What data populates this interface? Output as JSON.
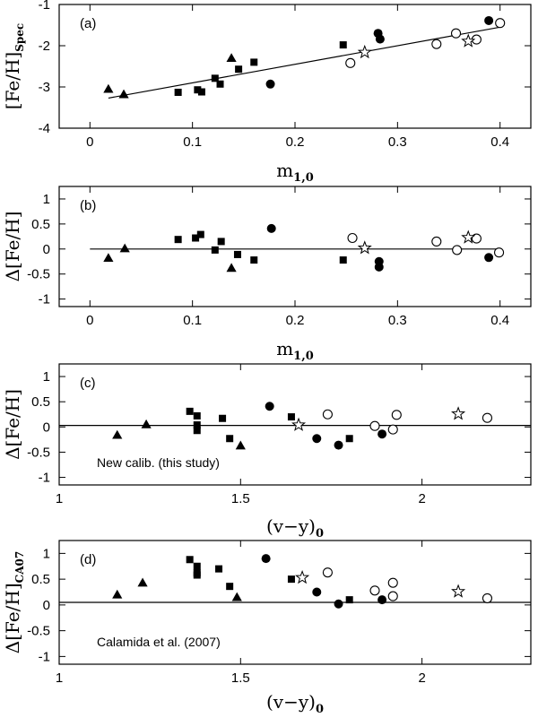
{
  "chart_data": [
    {
      "panel": "(a)",
      "type": "scatter",
      "xlim": [
        -0.03,
        0.43
      ],
      "ylim": [
        -4,
        -1
      ],
      "xticks": [
        0,
        0.1,
        0.2,
        0.3,
        0.4
      ],
      "yticks": [
        -4,
        -3,
        -2,
        -1
      ],
      "xlabel_main": "m",
      "xlabel_sub": "1,0",
      "ylabel_main": "[Fe/H]",
      "ylabel_sub": "Spec",
      "fit_line": [
        [
          0.018,
          -3.27
        ],
        [
          0.4,
          -1.55
        ]
      ],
      "series": [
        {
          "marker": "triangle",
          "points": [
            [
              0.018,
              -3.05
            ],
            [
              0.033,
              -3.18
            ],
            [
              0.138,
              -2.3
            ]
          ]
        },
        {
          "marker": "square",
          "points": [
            [
              0.086,
              -3.13
            ],
            [
              0.105,
              -3.07
            ],
            [
              0.109,
              -3.12
            ],
            [
              0.122,
              -2.79
            ],
            [
              0.127,
              -2.93
            ],
            [
              0.145,
              -2.57
            ],
            [
              0.16,
              -2.4
            ],
            [
              0.247,
              -1.98
            ]
          ]
        },
        {
          "marker": "filled-circle",
          "points": [
            [
              0.176,
              -2.93
            ],
            [
              0.281,
              -1.7
            ],
            [
              0.283,
              -1.84
            ],
            [
              0.389,
              -1.39
            ]
          ]
        },
        {
          "marker": "open-circle",
          "points": [
            [
              0.254,
              -2.42
            ],
            [
              0.338,
              -1.96
            ],
            [
              0.357,
              -1.7
            ],
            [
              0.377,
              -1.85
            ],
            [
              0.4,
              -1.45
            ]
          ]
        },
        {
          "marker": "star",
          "points": [
            [
              0.268,
              -2.16
            ],
            [
              0.369,
              -1.89
            ]
          ]
        }
      ]
    },
    {
      "panel": "(b)",
      "type": "scatter",
      "xlim": [
        -0.03,
        0.43
      ],
      "ylim": [
        -1.15,
        1.25
      ],
      "xticks": [
        0,
        0.1,
        0.2,
        0.3,
        0.4
      ],
      "yticks": [
        -1,
        -0.5,
        0,
        0.5,
        1
      ],
      "xlabel_main": "m",
      "xlabel_sub": "1,0",
      "ylabel_main": "Δ[Fe/H]",
      "hline": 0,
      "hline_x": [
        0,
        0.4
      ],
      "series": [
        {
          "marker": "triangle",
          "points": [
            [
              0.018,
              -0.18
            ],
            [
              0.034,
              0.01
            ],
            [
              0.138,
              -0.38
            ]
          ]
        },
        {
          "marker": "square",
          "points": [
            [
              0.086,
              0.19
            ],
            [
              0.103,
              0.22
            ],
            [
              0.108,
              0.29
            ],
            [
              0.122,
              -0.02
            ],
            [
              0.128,
              0.15
            ],
            [
              0.144,
              -0.11
            ],
            [
              0.16,
              -0.22
            ],
            [
              0.247,
              -0.22
            ]
          ]
        },
        {
          "marker": "filled-circle",
          "points": [
            [
              0.177,
              0.41
            ],
            [
              0.282,
              -0.25
            ],
            [
              0.282,
              -0.36
            ],
            [
              0.389,
              -0.17
            ]
          ]
        },
        {
          "marker": "open-circle",
          "points": [
            [
              0.256,
              0.22
            ],
            [
              0.338,
              0.15
            ],
            [
              0.358,
              -0.02
            ],
            [
              0.377,
              0.21
            ],
            [
              0.399,
              -0.07
            ]
          ]
        },
        {
          "marker": "star",
          "points": [
            [
              0.268,
              0.02
            ],
            [
              0.369,
              0.23
            ]
          ]
        }
      ]
    },
    {
      "panel": "(c)",
      "type": "scatter",
      "xlim": [
        1.0,
        2.3
      ],
      "ylim": [
        -1.15,
        1.25
      ],
      "xticks": [
        1,
        1.5,
        2
      ],
      "yticks": [
        -1,
        -0.5,
        0,
        0.5,
        1
      ],
      "xlabel_main": "(v−y)",
      "xlabel_sub": "0",
      "ylabel_main": "Δ[Fe/H]",
      "hline": 0.03,
      "annotation": "New calib. (this study)",
      "series": [
        {
          "marker": "triangle",
          "points": [
            [
              1.16,
              -0.16
            ],
            [
              1.24,
              0.05
            ],
            [
              1.5,
              -0.37
            ]
          ]
        },
        {
          "marker": "square",
          "points": [
            [
              1.36,
              0.31
            ],
            [
              1.38,
              0.22
            ],
            [
              1.38,
              0.04
            ],
            [
              1.38,
              -0.07
            ],
            [
              1.45,
              0.17
            ],
            [
              1.47,
              -0.23
            ],
            [
              1.64,
              0.2
            ],
            [
              1.8,
              -0.23
            ]
          ]
        },
        {
          "marker": "filled-circle",
          "points": [
            [
              1.58,
              0.41
            ],
            [
              1.71,
              -0.23
            ],
            [
              1.77,
              -0.36
            ],
            [
              1.89,
              -0.14
            ]
          ]
        },
        {
          "marker": "open-circle",
          "points": [
            [
              1.74,
              0.25
            ],
            [
              1.87,
              0.02
            ],
            [
              1.92,
              -0.05
            ],
            [
              1.93,
              0.24
            ],
            [
              2.18,
              0.18
            ]
          ]
        },
        {
          "marker": "star",
          "points": [
            [
              1.66,
              0.04
            ],
            [
              2.1,
              0.26
            ]
          ]
        }
      ]
    },
    {
      "panel": "(d)",
      "type": "scatter",
      "xlim": [
        1.0,
        2.3
      ],
      "ylim": [
        -1.15,
        1.25
      ],
      "xticks": [
        1,
        1.5,
        2
      ],
      "yticks": [
        -1,
        -0.5,
        0,
        0.5,
        1
      ],
      "xlabel_main": "(v−y)",
      "xlabel_sub": "0",
      "ylabel_main": "Δ[Fe/H]",
      "ylabel_sub": "CA07",
      "hline": 0.05,
      "annotation": "Calamida et al. (2007)",
      "series": [
        {
          "marker": "triangle",
          "points": [
            [
              1.16,
              0.2
            ],
            [
              1.23,
              0.43
            ],
            [
              1.49,
              0.15
            ]
          ]
        },
        {
          "marker": "square",
          "points": [
            [
              1.36,
              0.88
            ],
            [
              1.38,
              0.75
            ],
            [
              1.38,
              0.62
            ],
            [
              1.38,
              0.58
            ],
            [
              1.44,
              0.7
            ],
            [
              1.47,
              0.36
            ],
            [
              1.64,
              0.5
            ],
            [
              1.8,
              0.1
            ]
          ]
        },
        {
          "marker": "filled-circle",
          "points": [
            [
              1.57,
              0.9
            ],
            [
              1.71,
              0.25
            ],
            [
              1.77,
              0.02
            ],
            [
              1.89,
              0.1
            ]
          ]
        },
        {
          "marker": "open-circle",
          "points": [
            [
              1.74,
              0.63
            ],
            [
              1.87,
              0.28
            ],
            [
              1.92,
              0.43
            ],
            [
              1.92,
              0.17
            ],
            [
              2.18,
              0.13
            ]
          ]
        },
        {
          "marker": "star",
          "points": [
            [
              1.67,
              0.53
            ],
            [
              2.1,
              0.26
            ]
          ]
        }
      ]
    }
  ]
}
